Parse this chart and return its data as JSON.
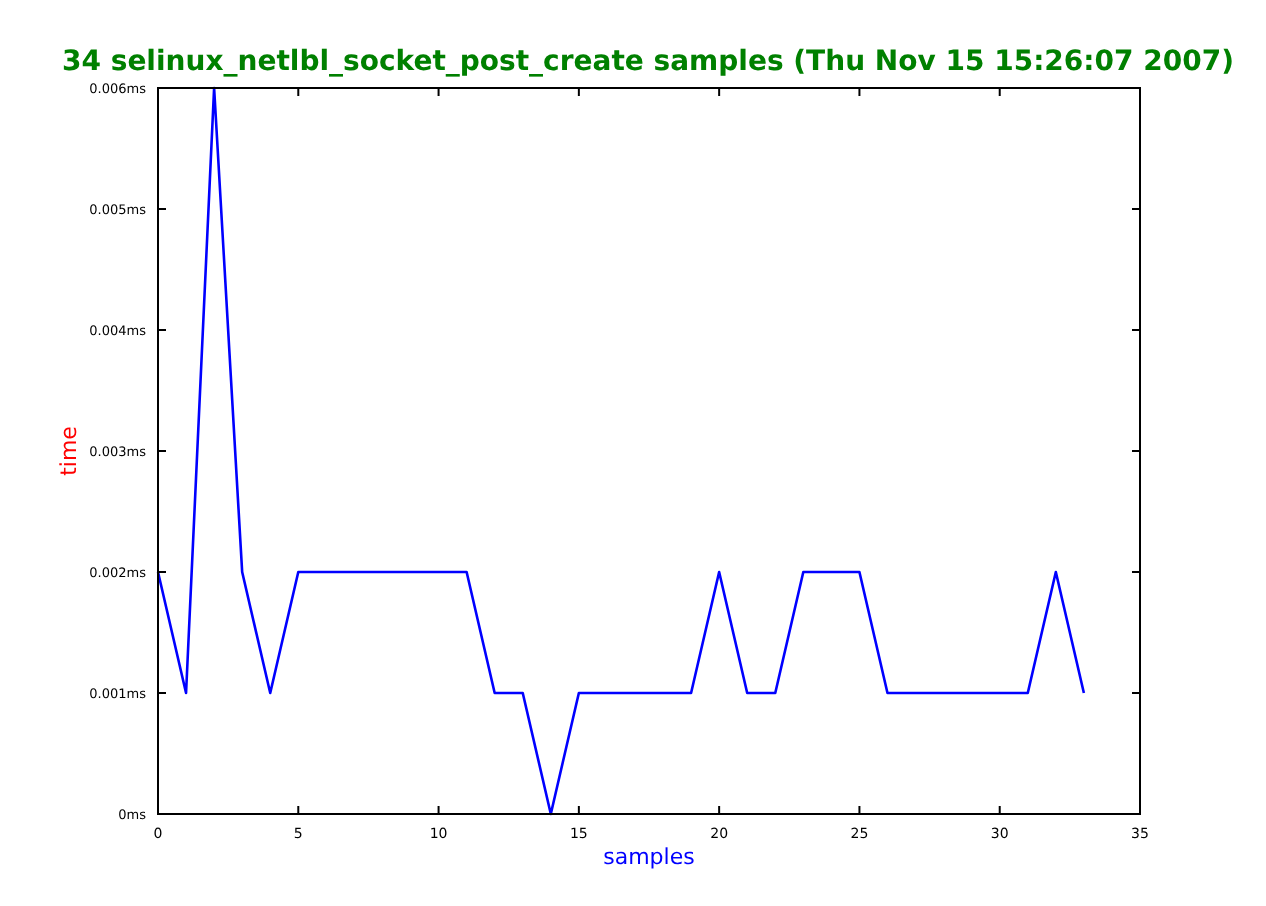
{
  "chart_data": {
    "type": "line",
    "title": "34 selinux_netlbl_socket_post_create samples (Thu Nov 15 15:26:07 2007)",
    "xlabel": "samples",
    "ylabel": "time",
    "x": [
      0,
      1,
      2,
      3,
      4,
      5,
      6,
      7,
      8,
      9,
      10,
      11,
      12,
      13,
      14,
      15,
      16,
      17,
      18,
      19,
      20,
      21,
      22,
      23,
      24,
      25,
      26,
      27,
      28,
      29,
      30,
      31,
      32,
      33
    ],
    "series": [
      {
        "color": "#0000ff",
        "values": [
          0.002,
          0.001,
          0.006,
          0.002,
          0.001,
          0.002,
          0.002,
          0.002,
          0.002,
          0.002,
          0.002,
          0.002,
          0.001,
          0.001,
          0,
          0.001,
          0.001,
          0.001,
          0.001,
          0.001,
          0.002,
          0.001,
          0.001,
          0.002,
          0.002,
          0.002,
          0.001,
          0.001,
          0.001,
          0.001,
          0.001,
          0.001,
          0.002,
          0.001
        ]
      }
    ],
    "xlim": [
      0,
      35
    ],
    "xticks": [
      0,
      5,
      10,
      15,
      20,
      25,
      30,
      35
    ],
    "ylim": [
      0,
      0.006
    ],
    "yticks": [
      {
        "value": 0,
        "label": "0ms"
      },
      {
        "value": 0.001,
        "label": "0.001ms"
      },
      {
        "value": 0.002,
        "label": "0.002ms"
      },
      {
        "value": 0.003,
        "label": "0.003ms"
      },
      {
        "value": 0.004,
        "label": "0.004ms"
      },
      {
        "value": 0.005,
        "label": "0.005ms"
      },
      {
        "value": 0.006,
        "label": "0.006ms"
      }
    ],
    "grid": false,
    "marker": "none",
    "line_style": "solid"
  }
}
